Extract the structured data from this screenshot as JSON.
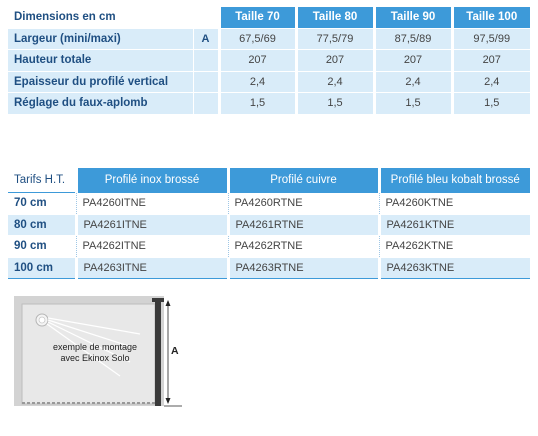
{
  "dimensions_table": {
    "title": "Dimensions en cm",
    "sizes": [
      "Taille 70",
      "Taille 80",
      "Taille 90",
      "Taille 100"
    ],
    "rows": [
      {
        "label": "Largeur (mini/maxi)",
        "letter": "A",
        "values": [
          "67,5/69",
          "77,5/79",
          "87,5/89",
          "97,5/99"
        ]
      },
      {
        "label": "Hauteur totale",
        "letter": "",
        "values": [
          "207",
          "207",
          "207",
          "207"
        ]
      },
      {
        "label": "Epaisseur du profilé vertical",
        "letter": "",
        "values": [
          "2,4",
          "2,4",
          "2,4",
          "2,4"
        ]
      },
      {
        "label": "Réglage du faux-aplomb",
        "letter": "",
        "values": [
          "1,5",
          "1,5",
          "1,5",
          "1,5"
        ]
      }
    ]
  },
  "tarifs_table": {
    "title": "Tarifs H.T.",
    "profiles": [
      "Profilé inox brossé",
      "Profilé cuivre",
      "Profilé bleu kobalt brossé"
    ],
    "rows": [
      {
        "label": "70 cm",
        "refs": [
          "PA4260ITNE",
          "PA4260RTNE",
          "PA4260KTNE"
        ]
      },
      {
        "label": "80 cm",
        "refs": [
          "PA4261ITNE",
          "PA4261RTNE",
          "PA4261KTNE"
        ]
      },
      {
        "label": "90 cm",
        "refs": [
          "PA4262ITNE",
          "PA4262RTNE",
          "PA4262KTNE"
        ]
      },
      {
        "label": "100 cm",
        "refs": [
          "PA4263ITNE",
          "PA4263RTNE",
          "PA4263KTNE"
        ]
      }
    ]
  },
  "diagram": {
    "note_line1": "exemple de montage",
    "note_line2": "avec Ekinox Solo",
    "dimension_label": "A"
  }
}
